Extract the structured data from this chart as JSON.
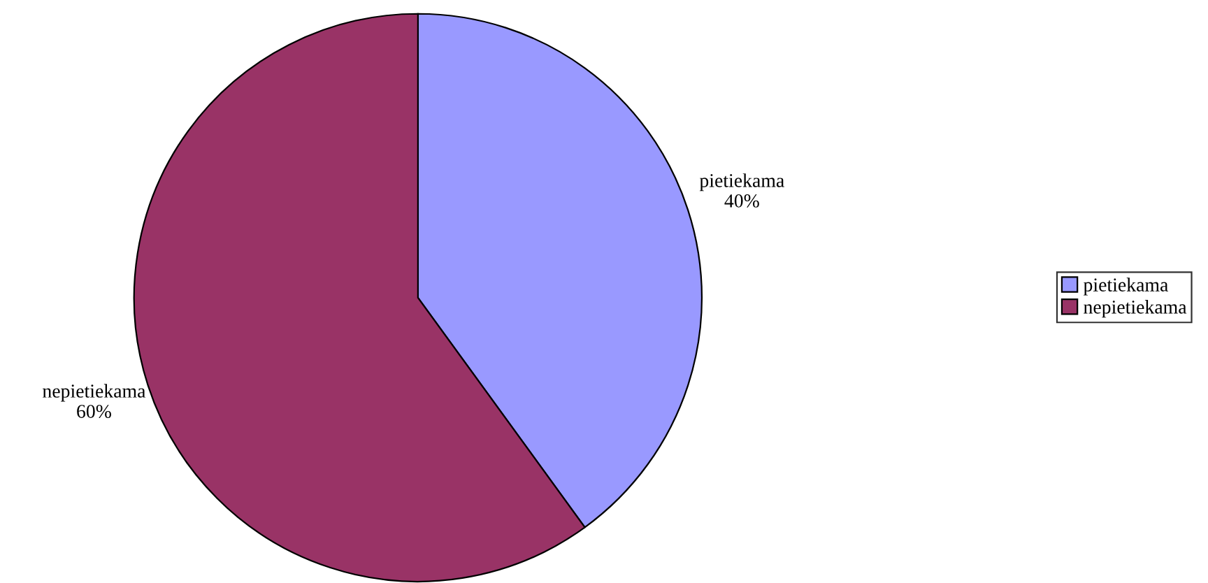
{
  "chart_data": {
    "type": "pie",
    "categories": [
      "pietiekama",
      "nepietiekama"
    ],
    "values": [
      40,
      60
    ],
    "value_labels": [
      "40%",
      "60%"
    ],
    "colors": [
      "#9999ff",
      "#993366"
    ],
    "legend": "right"
  }
}
